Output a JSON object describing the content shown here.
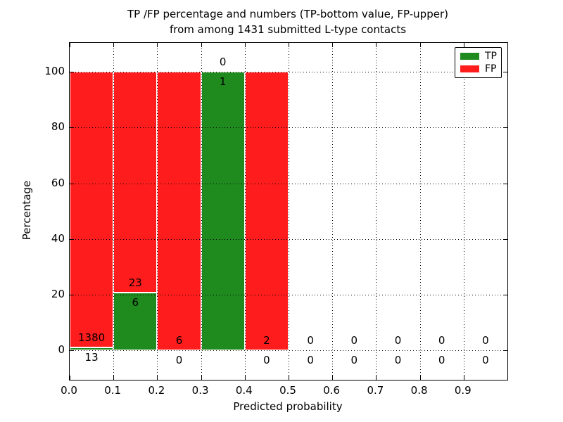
{
  "figure": {
    "title_line1": "TP /FP percentage and numbers (TP-bottom value, FP-upper)",
    "title_line2": "from among 1431 submitted L-type contacts",
    "xlabel": "Predicted probability",
    "ylabel": "Percentage",
    "background_color": "#ffffff"
  },
  "legend": {
    "position": "upper right",
    "entries": [
      {
        "label": "TP",
        "color": "#1f8b1f"
      },
      {
        "label": "FP",
        "color": "#ff1c1c"
      }
    ]
  },
  "chart_data": {
    "type": "bar",
    "subtype": "stacked-percentage-histogram",
    "title": "TP /FP percentage and numbers (TP-bottom value, FP-upper) from among 1431 submitted L-type contacts",
    "xlabel": "Predicted probability",
    "ylabel": "Percentage",
    "xlim": [
      0.0,
      1.0
    ],
    "ylim": [
      -10.6,
      110.4
    ],
    "grid": "dotted black, drawn above bars",
    "xtick_values": [
      0.0,
      0.1,
      0.2,
      0.3,
      0.4,
      0.5,
      0.6,
      0.7,
      0.8,
      0.9
    ],
    "xtick_labels": [
      "0.0",
      "0.1",
      "0.2",
      "0.3",
      "0.4",
      "0.5",
      "0.6",
      "0.7",
      "0.8",
      "0.9"
    ],
    "ytick_values": [
      0,
      20,
      40,
      60,
      80,
      100
    ],
    "ytick_labels": [
      "0",
      "20",
      "40",
      "60",
      "80",
      "100"
    ],
    "series": [
      {
        "name": "TP",
        "color": "#1f8b1f",
        "stack_order": "bottom"
      },
      {
        "name": "FP",
        "color": "#ff1c1c",
        "stack_order": "top"
      }
    ],
    "total_contacts": 1431,
    "bins": [
      {
        "x0": 0.0,
        "x1": 0.1,
        "tp": 13,
        "fp": 1380
      },
      {
        "x0": 0.1,
        "x1": 0.2,
        "tp": 6,
        "fp": 23
      },
      {
        "x0": 0.2,
        "x1": 0.3,
        "tp": 0,
        "fp": 6
      },
      {
        "x0": 0.3,
        "x1": 0.4,
        "tp": 1,
        "fp": 0
      },
      {
        "x0": 0.4,
        "x1": 0.5,
        "tp": 0,
        "fp": 2
      },
      {
        "x0": 0.5,
        "x1": 0.6,
        "tp": 0,
        "fp": 0
      },
      {
        "x0": 0.6,
        "x1": 0.7,
        "tp": 0,
        "fp": 0
      },
      {
        "x0": 0.7,
        "x1": 0.8,
        "tp": 0,
        "fp": 0
      },
      {
        "x0": 0.8,
        "x1": 0.9,
        "tp": 0,
        "fp": 0
      },
      {
        "x0": 0.9,
        "x1": 1.0,
        "tp": 0,
        "fp": 0
      }
    ]
  }
}
